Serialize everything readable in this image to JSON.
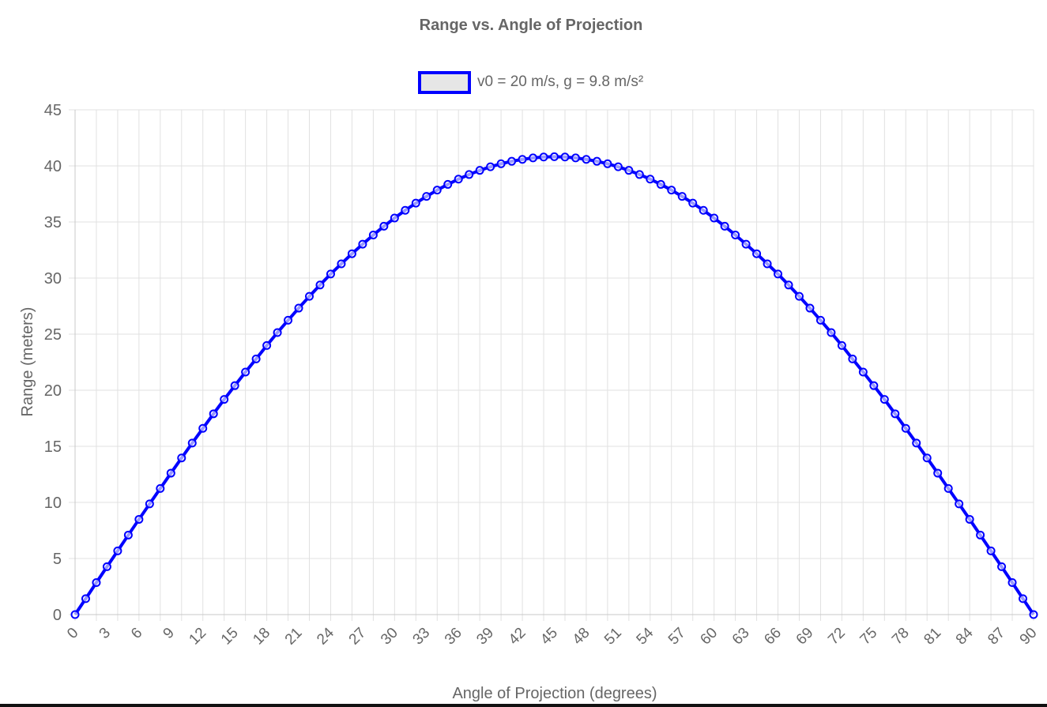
{
  "colors": {
    "series": "#0000ff",
    "legend_fill": "#e6e6e6",
    "grid": "#e1e1e1",
    "text": "#666666"
  },
  "chart_data": {
    "type": "line",
    "title": "Range vs. Angle of Projection",
    "xlabel": "Angle of Projection (degrees)",
    "ylabel": "Range (meters)",
    "legend_position": "top",
    "grid": true,
    "xlim": [
      0,
      90
    ],
    "ylim": [
      0,
      45
    ],
    "y_ticks": [
      0,
      5,
      10,
      15,
      20,
      25,
      30,
      35,
      40,
      45
    ],
    "x_tick_labels": [
      0,
      3,
      6,
      9,
      12,
      15,
      18,
      21,
      24,
      27,
      30,
      33,
      36,
      39,
      42,
      45,
      48,
      51,
      54,
      57,
      60,
      63,
      66,
      69,
      72,
      75,
      78,
      81,
      84,
      87,
      90
    ],
    "x": [
      0,
      1,
      2,
      3,
      4,
      5,
      6,
      7,
      8,
      9,
      10,
      11,
      12,
      13,
      14,
      15,
      16,
      17,
      18,
      19,
      20,
      21,
      22,
      23,
      24,
      25,
      26,
      27,
      28,
      29,
      30,
      31,
      32,
      33,
      34,
      35,
      36,
      37,
      38,
      39,
      40,
      41,
      42,
      43,
      44,
      45,
      46,
      47,
      48,
      49,
      50,
      51,
      52,
      53,
      54,
      55,
      56,
      57,
      58,
      59,
      60,
      61,
      62,
      63,
      64,
      65,
      66,
      67,
      68,
      69,
      70,
      71,
      72,
      73,
      74,
      75,
      76,
      77,
      78,
      79,
      80,
      81,
      82,
      83,
      84,
      85,
      86,
      87,
      88,
      89,
      90
    ],
    "series": [
      {
        "name": "v0 = 20 m/s, g = 9.8 m/s²",
        "values": [
          0,
          1.42,
          2.85,
          4.27,
          5.68,
          7.09,
          8.49,
          9.87,
          11.24,
          12.61,
          13.96,
          15.29,
          16.6,
          17.9,
          19.18,
          20.41,
          21.62,
          22.79,
          23.99,
          25.14,
          26.24,
          27.32,
          28.37,
          29.38,
          30.36,
          31.27,
          32.17,
          33.02,
          33.84,
          34.62,
          35.35,
          36.04,
          36.68,
          37.28,
          37.84,
          38.35,
          38.82,
          39.23,
          39.6,
          39.92,
          40.19,
          40.41,
          40.58,
          40.71,
          40.79,
          40.82,
          40.79,
          40.71,
          40.58,
          40.41,
          40.19,
          39.92,
          39.6,
          39.23,
          38.82,
          38.35,
          37.84,
          37.28,
          36.68,
          36.04,
          35.35,
          34.62,
          33.84,
          33.02,
          32.17,
          31.27,
          30.36,
          29.38,
          28.37,
          27.32,
          26.24,
          25.14,
          23.99,
          22.79,
          21.62,
          20.41,
          19.18,
          17.9,
          16.6,
          15.29,
          13.96,
          12.61,
          11.24,
          9.87,
          8.49,
          7.09,
          5.68,
          4.27,
          2.85,
          1.42,
          0
        ]
      }
    ]
  }
}
